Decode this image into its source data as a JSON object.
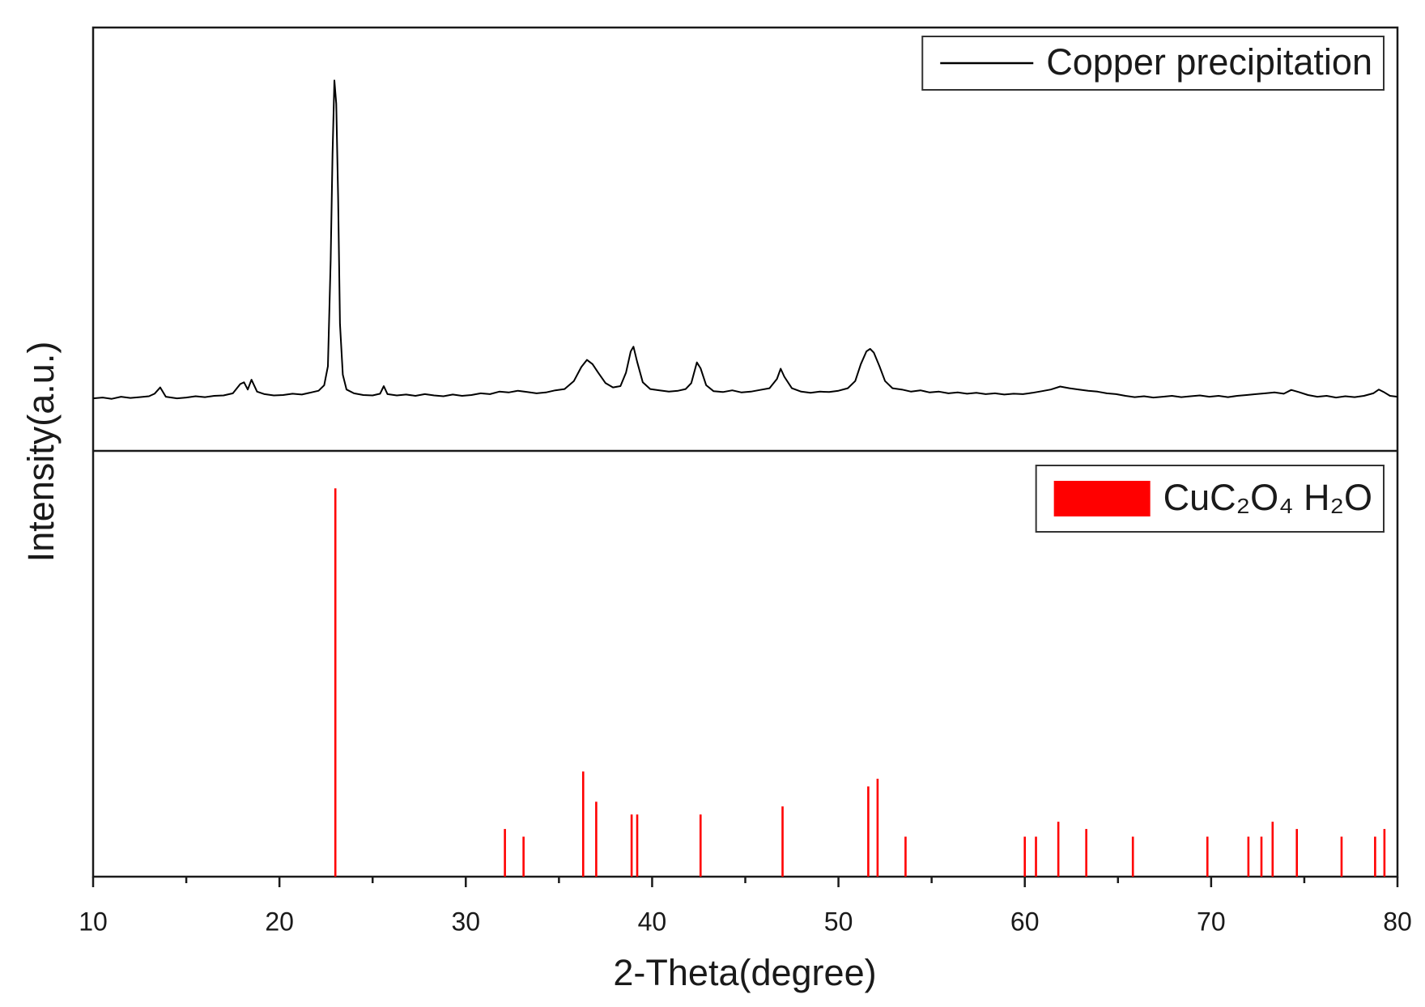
{
  "chart_data": [
    {
      "type": "line",
      "y_label": "Intensity(a.u.)",
      "xlim": [
        10,
        80
      ],
      "ylim": [
        0,
        100
      ],
      "legend": "upper right",
      "series": [
        {
          "name": "Copper precipitation",
          "color": "#000000",
          "x": [
            10,
            10.5,
            11,
            11.5,
            12,
            12.5,
            13,
            13.3,
            13.6,
            13.9,
            14.5,
            15,
            15.5,
            16,
            16.5,
            17,
            17.5,
            17.9,
            18.1,
            18.3,
            18.5,
            18.8,
            19.2,
            19.7,
            20.2,
            20.7,
            21.2,
            21.7,
            22.1,
            22.4,
            22.6,
            22.75,
            22.85,
            22.95,
            23.05,
            23.15,
            23.25,
            23.4,
            23.6,
            24,
            24.5,
            25,
            25.4,
            25.6,
            25.8,
            26.3,
            26.8,
            27.3,
            27.8,
            28.3,
            28.8,
            29.3,
            29.8,
            30.3,
            30.8,
            31.3,
            31.8,
            32.3,
            32.8,
            33.3,
            33.8,
            34.3,
            34.8,
            35.3,
            35.8,
            36.2,
            36.5,
            36.8,
            37.1,
            37.5,
            37.9,
            38.3,
            38.6,
            38.85,
            39,
            39.2,
            39.5,
            39.9,
            40.4,
            40.9,
            41.4,
            41.8,
            42.1,
            42.4,
            42.6,
            42.9,
            43.3,
            43.8,
            44.3,
            44.8,
            45.3,
            45.8,
            46.3,
            46.7,
            46.9,
            47.1,
            47.5,
            48,
            48.5,
            49,
            49.5,
            50,
            50.5,
            50.9,
            51.2,
            51.5,
            51.7,
            51.9,
            52.2,
            52.5,
            52.9,
            53.4,
            53.9,
            54.4,
            54.9,
            55.4,
            55.9,
            56.4,
            56.9,
            57.4,
            57.9,
            58.4,
            58.9,
            59.4,
            59.9,
            60.4,
            60.9,
            61.4,
            61.9,
            62.4,
            62.9,
            63.4,
            63.9,
            64.4,
            64.9,
            65.4,
            65.9,
            66.4,
            66.9,
            67.4,
            67.9,
            68.4,
            68.9,
            69.4,
            69.9,
            70.4,
            70.9,
            71.4,
            71.9,
            72.4,
            72.9,
            73.4,
            73.9,
            74.3,
            74.7,
            75.2,
            75.7,
            76.2,
            76.7,
            77.2,
            77.7,
            78.2,
            78.7,
            79,
            79.3,
            79.6,
            80
          ],
          "values": [
            12.4,
            12.6,
            12.3,
            12.8,
            12.5,
            12.7,
            12.9,
            13.5,
            15.0,
            12.8,
            12.4,
            12.6,
            12.9,
            12.7,
            13.0,
            13.1,
            13.6,
            15.8,
            16.2,
            14.5,
            16.8,
            14.0,
            13.4,
            13.1,
            13.2,
            13.5,
            13.3,
            13.8,
            14.2,
            15.5,
            20,
            45,
            70,
            87.5,
            82,
            60,
            30,
            18,
            14.5,
            13.6,
            13.2,
            13.1,
            13.5,
            15.3,
            13.4,
            13.1,
            13.3,
            13.0,
            13.4,
            13.1,
            12.9,
            13.3,
            13.0,
            13.2,
            13.6,
            13.4,
            14.0,
            13.8,
            14.2,
            13.9,
            13.6,
            13.8,
            14.3,
            14.6,
            16.5,
            19.8,
            21.5,
            20.5,
            18.5,
            16.0,
            15.0,
            15.3,
            18.5,
            23.5,
            24.6,
            21.0,
            16.2,
            14.6,
            14.3,
            14.0,
            14.2,
            14.6,
            16.0,
            20.9,
            19.5,
            15.5,
            14.1,
            13.9,
            14.3,
            13.8,
            14.0,
            14.4,
            14.8,
            17.0,
            19.4,
            17.5,
            14.8,
            14.0,
            13.7,
            14.0,
            13.9,
            14.2,
            14.8,
            16.5,
            20.5,
            23.5,
            24.1,
            23.2,
            20.0,
            16.5,
            14.8,
            14.5,
            14.0,
            14.3,
            13.8,
            14.0,
            13.6,
            13.8,
            13.5,
            13.7,
            13.4,
            13.6,
            13.3,
            13.5,
            13.4,
            13.7,
            14.1,
            14.5,
            15.2,
            14.8,
            14.5,
            14.2,
            14.0,
            13.6,
            13.4,
            13.0,
            12.7,
            12.9,
            12.6,
            12.8,
            13.0,
            12.7,
            12.9,
            13.1,
            12.8,
            13.0,
            12.7,
            13.0,
            13.2,
            13.4,
            13.6,
            13.8,
            13.5,
            14.4,
            13.9,
            13.2,
            12.8,
            13.0,
            12.6,
            12.9,
            12.7,
            13.0,
            13.6,
            14.5,
            13.8,
            13.0,
            12.8
          ]
        }
      ]
    },
    {
      "type": "bar",
      "x_label": "2-Theta(degree)",
      "xlim": [
        10,
        80
      ],
      "xticks": [
        10,
        20,
        30,
        40,
        50,
        60,
        70,
        80
      ],
      "x_minor_ticks": [
        15,
        25,
        35,
        45,
        55,
        65,
        75
      ],
      "ylim": [
        0,
        100
      ],
      "legend": "upper right",
      "series": [
        {
          "name": "CuC₂O₄ H₂O",
          "color": "#ff0000",
          "x": [
            23.0,
            32.1,
            33.1,
            36.3,
            37.0,
            38.9,
            39.2,
            42.6,
            47.0,
            51.6,
            52.1,
            53.6,
            60.0,
            60.6,
            61.8,
            63.3,
            65.8,
            69.8,
            72.0,
            72.7,
            73.3,
            74.6,
            77.0,
            78.8,
            79.3
          ],
          "values": [
            91.2,
            11.2,
            9.4,
            24.7,
            17.6,
            14.6,
            14.6,
            14.6,
            16.5,
            21.2,
            23.0,
            9.4,
            9.4,
            9.4,
            12.9,
            11.2,
            9.4,
            9.4,
            9.4,
            9.4,
            12.9,
            11.2,
            9.4,
            9.4,
            11.2
          ]
        }
      ]
    }
  ]
}
